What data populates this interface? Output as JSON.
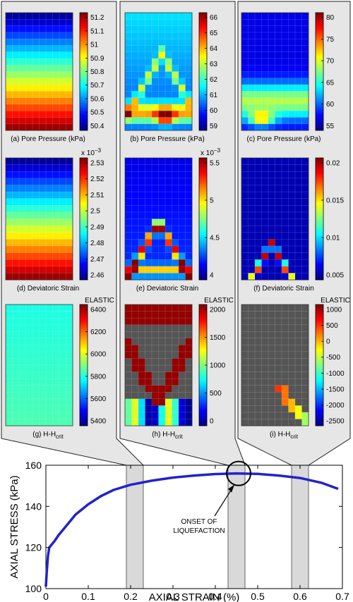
{
  "panels": [
    {
      "caption": "(a) Pore Pressure (kPa)",
      "cb_ticks": [
        "51.2",
        "51.1",
        "51",
        "50.9",
        "50.8",
        "50.7",
        "50.6",
        "50.5",
        "50.4"
      ],
      "cb_exp": "",
      "cb_top": ""
    },
    {
      "caption": "(b) Pore Pressure (kPa)",
      "cb_ticks": [
        "66",
        "65",
        "64",
        "63",
        "62",
        "61",
        "60",
        "59"
      ],
      "cb_exp": "",
      "cb_top": ""
    },
    {
      "caption": "(c) Pore Pressure (kPa)",
      "cb_ticks": [
        "80",
        "75",
        "70",
        "65",
        "60",
        "55"
      ],
      "cb_exp": "",
      "cb_top": ""
    },
    {
      "caption": "(d) Deviatoric Strain",
      "cb_ticks": [
        "2.53",
        "2.52",
        "2.51",
        "2.5",
        "2.49",
        "2.48",
        "2.47",
        "2.46"
      ],
      "cb_exp": "x 10",
      "cb_top": ""
    },
    {
      "caption": "(e) Deviatoric Strain",
      "cb_ticks": [
        "5.5",
        "5",
        "4.5",
        "4"
      ],
      "cb_exp": "x 10",
      "cb_top": ""
    },
    {
      "caption": "(f) Deviatoric Strain",
      "cb_ticks": [
        "0.02",
        "0.015",
        "0.01",
        "0.005"
      ],
      "cb_exp": "",
      "cb_top": ""
    },
    {
      "caption_main": "(g) H-H",
      "caption_sub": "crit",
      "cb_ticks": [
        "6400",
        "6200",
        "6000",
        "5800",
        "5600",
        "5400"
      ],
      "cb_exp": "",
      "cb_top": "ELASTIC"
    },
    {
      "caption_main": "(h) H-H",
      "caption_sub": "crit",
      "cb_ticks": [
        "2000",
        "1500",
        "1000",
        "500",
        "0"
      ],
      "cb_exp": "",
      "cb_top": "ELASTIC"
    },
    {
      "caption_main": "(i) H-H",
      "caption_sub": "crit",
      "cb_ticks": [
        "1000",
        "500",
        "0",
        "-500",
        "-1000",
        "-1500",
        "-2000",
        "-2500"
      ],
      "cb_exp": "",
      "cb_top": "ELASTIC"
    }
  ],
  "exp_power": "−3",
  "annotation": {
    "line1": "ONSET OF",
    "line2": "LIQUEFACTION"
  },
  "colors": {
    "curve": "#2222cc",
    "band": "#d9d9d9",
    "panel_bg": "#e6e6e6"
  },
  "chart_data": {
    "type": "line",
    "xlabel": "AXIAL STRAIN (%)",
    "ylabel": "AXIAL STRESS (kPa)",
    "xlim": [
      0,
      0.7
    ],
    "ylim": [
      100,
      160
    ],
    "xticks": [
      "0",
      "0.1",
      "0.2",
      "0.3",
      "0.4",
      "0.5",
      "0.6",
      "0.7"
    ],
    "yticks": [
      "100",
      "120",
      "140",
      "160"
    ],
    "grid": false,
    "x": [
      0,
      0.002,
      0.005,
      0.008,
      0.012,
      0.02,
      0.03,
      0.05,
      0.07,
      0.1,
      0.13,
      0.16,
      0.2,
      0.25,
      0.3,
      0.35,
      0.4,
      0.45,
      0.5,
      0.55,
      0.6,
      0.65,
      0.69
    ],
    "y": [
      101,
      108,
      116,
      120,
      121,
      123,
      126,
      131,
      136,
      141,
      145,
      148,
      150.5,
      152.5,
      154,
      155,
      155.7,
      156,
      155.8,
      155,
      153.8,
      151.5,
      148.5
    ],
    "shaded_bands": [
      [
        0.19,
        0.23
      ],
      [
        0.43,
        0.47
      ],
      [
        0.58,
        0.62
      ]
    ],
    "marker_circle": {
      "x": 0.455,
      "y": 156
    }
  }
}
